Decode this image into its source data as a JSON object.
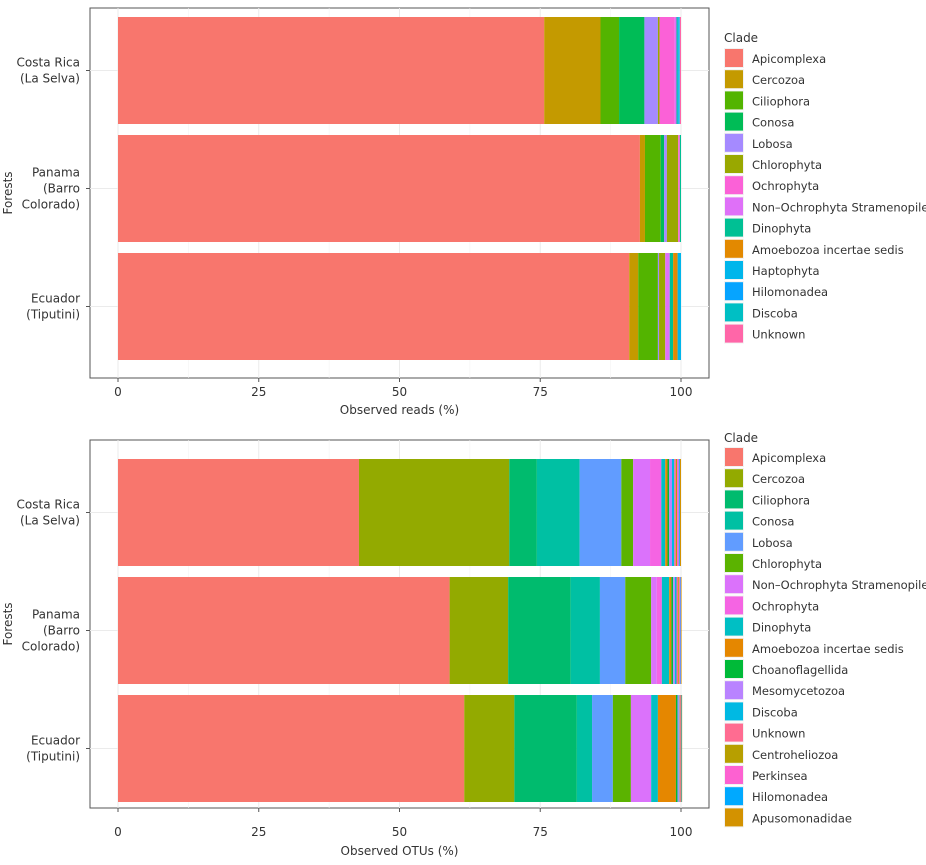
{
  "chart_data": [
    {
      "type": "bar",
      "orientation": "horizontal",
      "stacked": true,
      "categories": [
        "Costa Rica\n(La Selva)",
        "Panama\n(Barro\nColorado)",
        "Ecuador\n(Tiputini)"
      ],
      "xlabel": "Observed reads (%)",
      "ylabel": "Forests",
      "xlim": [
        0,
        100
      ],
      "xticks": [
        0,
        25,
        50,
        75,
        100
      ],
      "grid": true,
      "legend_title": "Clade",
      "legend_position": "right",
      "series": [
        {
          "name": "Apicomplexa",
          "color": "#F8766D",
          "values": [
            75.7,
            92.7,
            90.8
          ]
        },
        {
          "name": "Cercozoa",
          "color": "#C49A00",
          "values": [
            10.0,
            0.9,
            1.6
          ]
        },
        {
          "name": "Ciliophora",
          "color": "#53B400",
          "values": [
            3.3,
            2.8,
            3.5
          ]
        },
        {
          "name": "Conosa",
          "color": "#00BC56",
          "values": [
            4.5,
            0.6,
            0.0
          ]
        },
        {
          "name": "Lobosa",
          "color": "#A58AFF",
          "values": [
            2.4,
            0.5,
            0.2
          ]
        },
        {
          "name": "Chlorophyta",
          "color": "#99A800",
          "values": [
            0.3,
            2.0,
            1.1
          ]
        },
        {
          "name": "Ochrophyta",
          "color": "#FB61D7",
          "values": [
            2.7,
            0.3,
            0.0
          ]
        },
        {
          "name": "Non-Ochrophyta Stramenopiles",
          "color": "#DF70F8",
          "values": [
            0.3,
            0.0,
            0.8
          ]
        },
        {
          "name": "Dinophyta",
          "color": "#00C094",
          "values": [
            0.2,
            0.2,
            0.6
          ]
        },
        {
          "name": "Amoebozoa incertae sedis",
          "color": "#E38900",
          "values": [
            0.0,
            0.0,
            0.8
          ]
        },
        {
          "name": "Haptophyta",
          "color": "#00B6EB",
          "values": [
            0.2,
            0.0,
            0.6
          ]
        },
        {
          "name": "Hilomonadea",
          "color": "#06A4FF",
          "values": [
            0.1,
            0.0,
            0.0
          ]
        },
        {
          "name": "Discoba",
          "color": "#00BFC4",
          "values": [
            0.1,
            0.0,
            0.0
          ]
        },
        {
          "name": "Unknown",
          "color": "#FF66A8",
          "values": [
            0.2,
            0.0,
            0.0
          ]
        }
      ]
    },
    {
      "type": "bar",
      "orientation": "horizontal",
      "stacked": true,
      "categories": [
        "Costa Rica\n(La Selva)",
        "Panama\n(Barro\nColorado)",
        "Ecuador\n(Tiputini)"
      ],
      "xlabel": "Observed OTUs (%)",
      "ylabel": "Forests",
      "xlim": [
        0,
        100
      ],
      "xticks": [
        0,
        25,
        50,
        75,
        100
      ],
      "grid": true,
      "legend_title": "Clade",
      "legend_position": "right",
      "series": [
        {
          "name": "Apicomplexa",
          "color": "#F8766D",
          "values": [
            42.8,
            58.9,
            61.5
          ]
        },
        {
          "name": "Cercozoa",
          "color": "#93AA00",
          "values": [
            26.7,
            10.4,
            8.9
          ]
        },
        {
          "name": "Ciliophora",
          "color": "#00BB6E",
          "values": [
            4.9,
            11.1,
            11.1
          ]
        },
        {
          "name": "Conosa",
          "color": "#00C0A3",
          "values": [
            7.6,
            5.2,
            2.7
          ]
        },
        {
          "name": "Lobosa",
          "color": "#619CFF",
          "values": [
            7.4,
            4.5,
            3.7
          ]
        },
        {
          "name": "Chlorophyta",
          "color": "#5BB300",
          "values": [
            2.1,
            4.6,
            3.2
          ]
        },
        {
          "name": "Non-Ochrophyta Stramenopiles",
          "color": "#DB72FB",
          "values": [
            3.0,
            1.0,
            3.6
          ]
        },
        {
          "name": "Ochrophyta",
          "color": "#F564E3",
          "values": [
            2.0,
            0.9,
            0.0
          ]
        },
        {
          "name": "Dinophyta",
          "color": "#00BFC4",
          "values": [
            0.7,
            1.3,
            1.2
          ]
        },
        {
          "name": "Amoebozoa incertae sedis",
          "color": "#E58700",
          "values": [
            0.4,
            0.4,
            3.2
          ]
        },
        {
          "name": "Choanoflagellida",
          "color": "#00BA38",
          "values": [
            0.3,
            0.3,
            0.3
          ]
        },
        {
          "name": "Mesomycetozoa",
          "color": "#B983FF",
          "values": [
            0.5,
            0.3,
            0.2
          ]
        },
        {
          "name": "Discoba",
          "color": "#00B9E3",
          "values": [
            0.4,
            0.3,
            0.1
          ]
        },
        {
          "name": "Unknown",
          "color": "#FF6C91",
          "values": [
            0.3,
            0.3,
            0.1
          ]
        },
        {
          "name": "Centroheliozoa",
          "color": "#B79F00",
          "values": [
            0.2,
            0.2,
            0.1
          ]
        },
        {
          "name": "Perkinsea",
          "color": "#FD61D1",
          "values": [
            0.3,
            0.2,
            0.1
          ]
        },
        {
          "name": "Hilomonadea",
          "color": "#00A9FF",
          "values": [
            0.2,
            0.1,
            0.1
          ]
        },
        {
          "name": "Apusomonadidae",
          "color": "#D39200",
          "values": [
            0.2,
            0.1,
            0.1
          ]
        }
      ]
    }
  ]
}
